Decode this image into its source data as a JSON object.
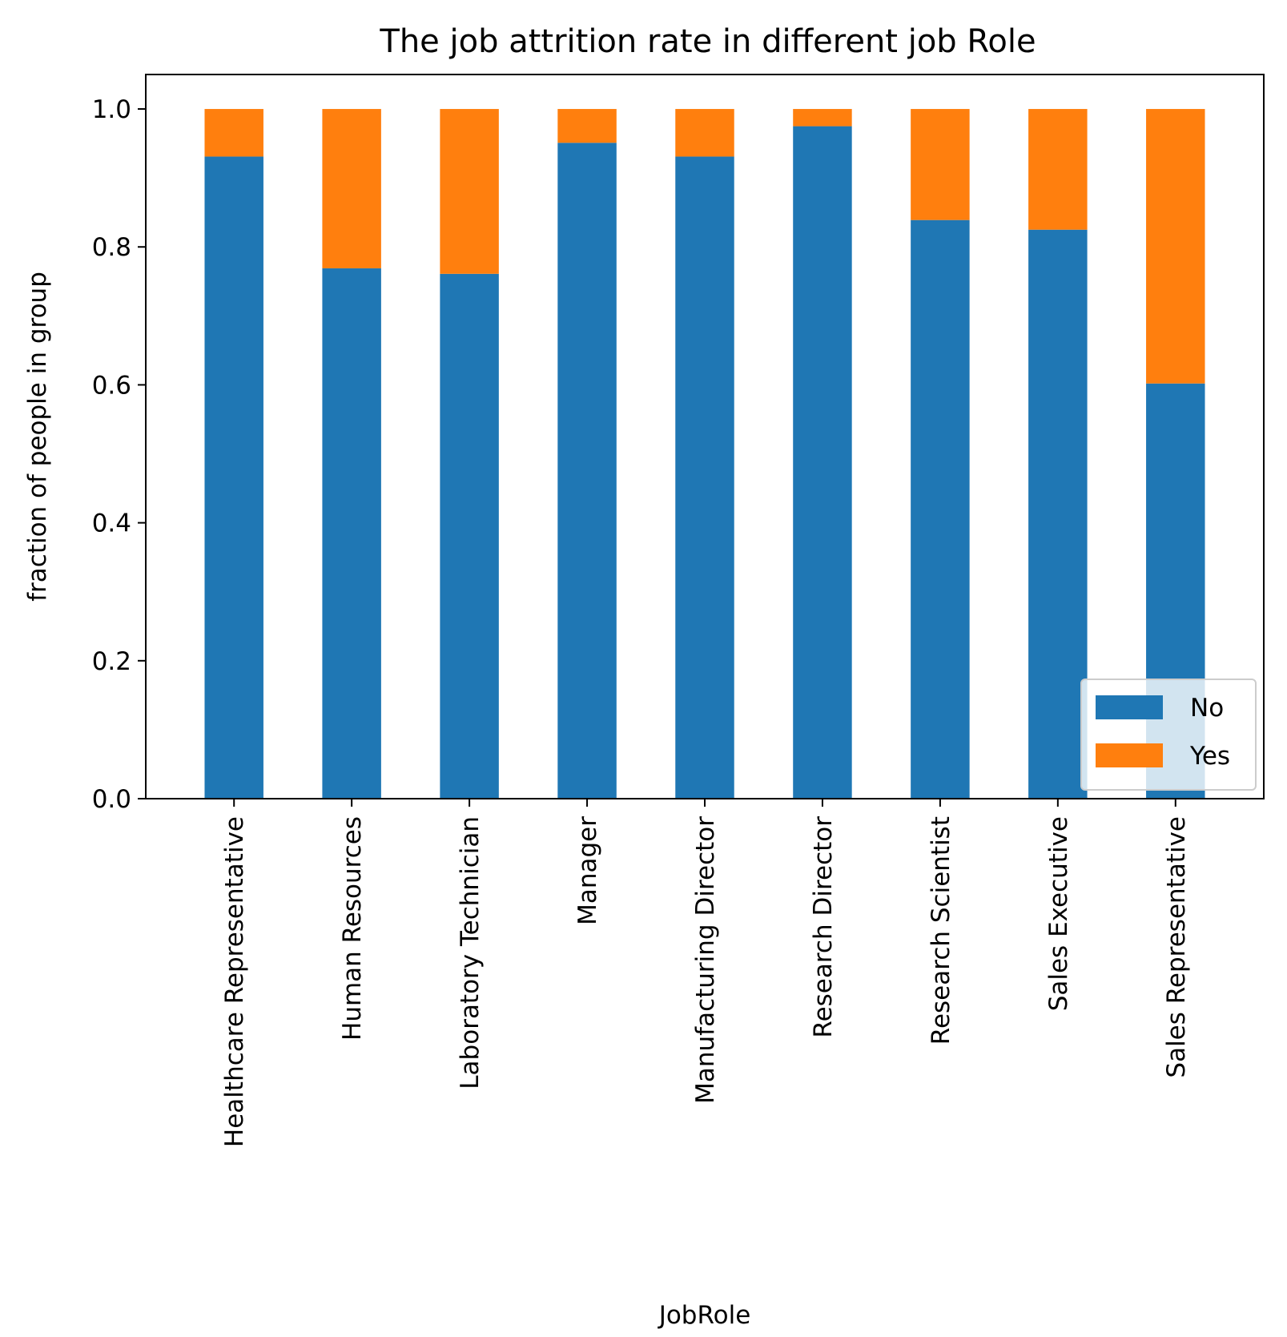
{
  "chart_data": {
    "type": "bar",
    "stacked": true,
    "title": "The job attrition rate in different job Role",
    "xlabel": "JobRole",
    "ylabel": "fraction of people in group",
    "ylim": [
      0,
      1.05
    ],
    "yticks": [
      "0.0",
      "0.2",
      "0.4",
      "0.6",
      "0.8",
      "1.0"
    ],
    "categories": [
      "Healthcare Representative",
      "Human Resources",
      "Laboratory Technician",
      "Manager",
      "Manufacturing Director",
      "Research Director",
      "Research Scientist",
      "Sales Executive",
      "Sales Representative"
    ],
    "series": [
      {
        "name": "No",
        "color": "#1f77b4",
        "values": [
          0.931,
          0.769,
          0.761,
          0.951,
          0.931,
          0.975,
          0.839,
          0.825,
          0.602
        ]
      },
      {
        "name": "Yes",
        "color": "#ff7f0e",
        "values": [
          0.069,
          0.231,
          0.239,
          0.049,
          0.069,
          0.025,
          0.161,
          0.175,
          0.398
        ]
      }
    ],
    "legend": {
      "position": "lower right"
    },
    "grid": false
  }
}
